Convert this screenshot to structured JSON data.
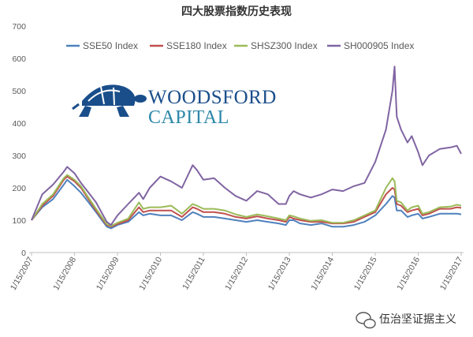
{
  "chart_data": {
    "type": "line",
    "title": "四大股票指数历史表现",
    "ylim": [
      0,
      700
    ],
    "y_ticks": [
      0,
      100,
      200,
      300,
      400,
      500,
      600,
      700
    ],
    "x_ticks": [
      "1/15/2007",
      "1/15/2008",
      "1/15/2009",
      "1/15/2010",
      "1/15/2011",
      "1/15/2012",
      "1/15/2013",
      "1/15/2014",
      "1/15/2015",
      "1/15/2016",
      "1/15/2017"
    ],
    "x": [
      2007.0,
      2007.25,
      2007.5,
      2007.75,
      2007.83,
      2008.0,
      2008.15,
      2008.3,
      2008.5,
      2008.75,
      2008.85,
      2009.0,
      2009.25,
      2009.5,
      2009.6,
      2009.75,
      2010.0,
      2010.25,
      2010.5,
      2010.75,
      2010.85,
      2011.0,
      2011.25,
      2011.5,
      2011.75,
      2012.0,
      2012.25,
      2012.5,
      2012.75,
      2012.92,
      2013.0,
      2013.1,
      2013.25,
      2013.5,
      2013.75,
      2014.0,
      2014.25,
      2014.5,
      2014.75,
      2015.0,
      2015.25,
      2015.4,
      2015.45,
      2015.5,
      2015.6,
      2015.75,
      2015.85,
      2016.0,
      2016.1,
      2016.25,
      2016.5,
      2016.75,
      2016.9,
      2017.0
    ],
    "series": [
      {
        "name": "SSE50 Index",
        "color": "#4f81bd",
        "values": [
          100,
          140,
          165,
          210,
          225,
          205,
          185,
          160,
          125,
          80,
          75,
          85,
          95,
          125,
          115,
          120,
          115,
          115,
          100,
          125,
          120,
          110,
          110,
          105,
          100,
          95,
          100,
          95,
          90,
          85,
          100,
          100,
          90,
          85,
          90,
          80,
          80,
          85,
          95,
          115,
          150,
          175,
          170,
          130,
          130,
          110,
          115,
          120,
          105,
          110,
          120,
          120,
          120,
          118
        ]
      },
      {
        "name": "SSE180 Index",
        "color": "#c0504d",
        "values": [
          100,
          145,
          175,
          225,
          235,
          220,
          200,
          170,
          130,
          85,
          80,
          88,
          100,
          140,
          125,
          130,
          130,
          130,
          110,
          140,
          135,
          125,
          125,
          120,
          110,
          105,
          112,
          105,
          100,
          95,
          110,
          105,
          100,
          95,
          95,
          90,
          90,
          95,
          110,
          125,
          180,
          200,
          195,
          150,
          145,
          125,
          130,
          135,
          115,
          120,
          135,
          135,
          140,
          138
        ]
      },
      {
        "name": "SHSZ300 Index",
        "color": "#9bbb59",
        "values": [
          100,
          150,
          180,
          230,
          240,
          225,
          205,
          175,
          135,
          88,
          82,
          92,
          105,
          155,
          135,
          140,
          140,
          145,
          120,
          150,
          145,
          135,
          135,
          130,
          118,
          110,
          118,
          112,
          105,
          100,
          115,
          112,
          105,
          98,
          100,
          92,
          92,
          100,
          115,
          130,
          200,
          230,
          220,
          160,
          155,
          130,
          140,
          145,
          120,
          125,
          140,
          142,
          148,
          145
        ]
      },
      {
        "name": "SH000905 Index",
        "color": "#8064a2",
        "values": [
          100,
          180,
          210,
          250,
          265,
          245,
          215,
          190,
          155,
          95,
          85,
          115,
          150,
          185,
          165,
          200,
          235,
          220,
          200,
          270,
          255,
          225,
          230,
          200,
          175,
          160,
          190,
          180,
          150,
          150,
          175,
          190,
          180,
          170,
          180,
          195,
          190,
          205,
          215,
          280,
          380,
          500,
          575,
          420,
          380,
          340,
          360,
          310,
          270,
          300,
          320,
          325,
          330,
          305
        ]
      }
    ],
    "legend": "top-center",
    "grid": false
  },
  "logo": {
    "word1": "WOODSFORD",
    "word2": "CAPITAL",
    "brand_color": "#1a4e8a",
    "accent_color": "#2b87a8"
  },
  "watermark": {
    "text": "伍治坚证据主义"
  }
}
